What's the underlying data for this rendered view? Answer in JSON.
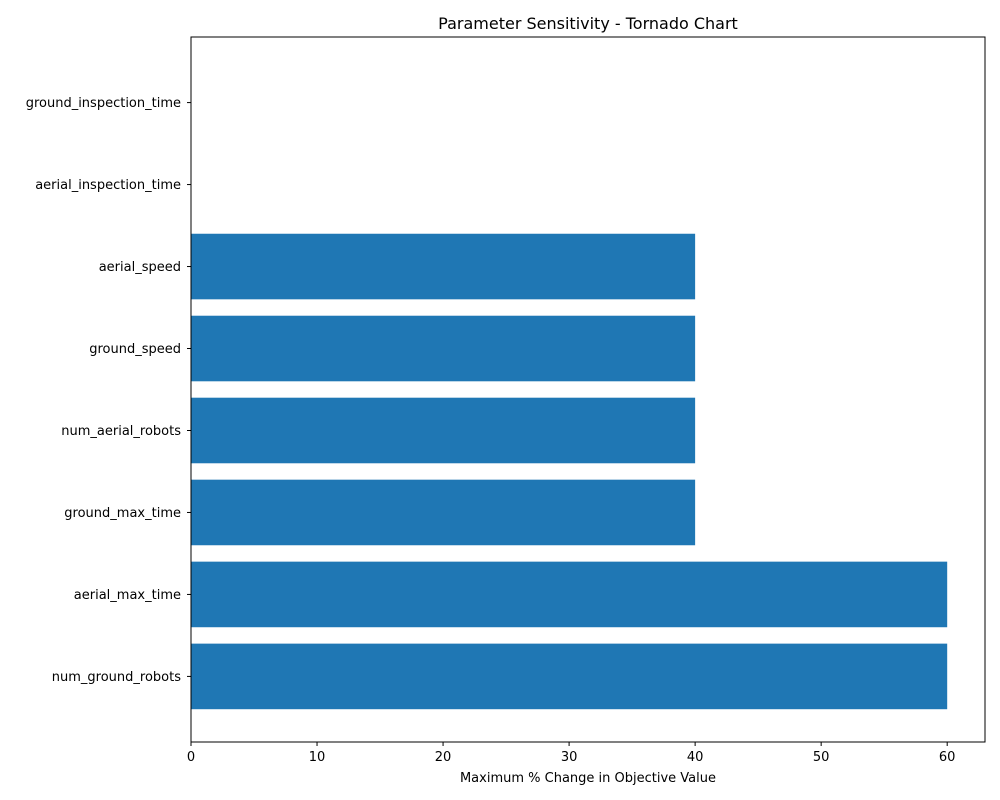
{
  "chart_data": {
    "type": "bar",
    "orientation": "horizontal",
    "title": "Parameter Sensitivity - Tornado Chart",
    "xlabel": "Maximum % Change in Objective Value",
    "ylabel": "",
    "categories": [
      "num_ground_robots",
      "aerial_max_time",
      "ground_max_time",
      "num_aerial_robots",
      "ground_speed",
      "aerial_speed",
      "aerial_inspection_time",
      "ground_inspection_time"
    ],
    "values": [
      60,
      60,
      40,
      40,
      40,
      40,
      0,
      0
    ],
    "xlim": [
      0,
      63
    ],
    "xticks": [
      0,
      10,
      20,
      30,
      40,
      50,
      60
    ],
    "grid": false,
    "bar_color": "#1f77b4"
  }
}
